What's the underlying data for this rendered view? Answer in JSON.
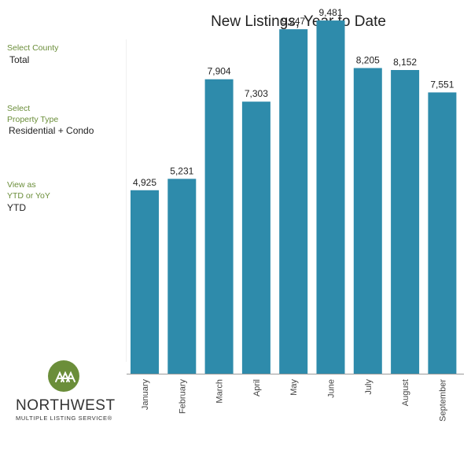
{
  "filters": {
    "county": {
      "label": "Select County",
      "value": "Total"
    },
    "property_type": {
      "label": "Select\nProperty Type",
      "value": "Residential + Condo"
    },
    "view": {
      "label": "View as\nYTD or YoY",
      "value": "YTD"
    }
  },
  "logo": {
    "name": "NORTHWEST",
    "subtitle": "MULTIPLE LISTING SERVICE®"
  },
  "colors": {
    "bar": "#2e8bab",
    "accent": "#6b8e3a"
  },
  "chart_data": {
    "type": "bar",
    "title": "New Listings, Year to Date",
    "categories": [
      "January",
      "February",
      "March",
      "April",
      "May",
      "June",
      "July",
      "August",
      "September"
    ],
    "values": [
      4925,
      5231,
      7904,
      7303,
      9247,
      9481,
      8205,
      8152,
      7551
    ],
    "value_labels": [
      "4,925",
      "5,231",
      "7,904",
      "7,303",
      "9,247",
      "9,481",
      "8,205",
      "8,152",
      "7,551"
    ],
    "ylim": [
      0,
      10000
    ],
    "grid": false,
    "legend": "none"
  }
}
